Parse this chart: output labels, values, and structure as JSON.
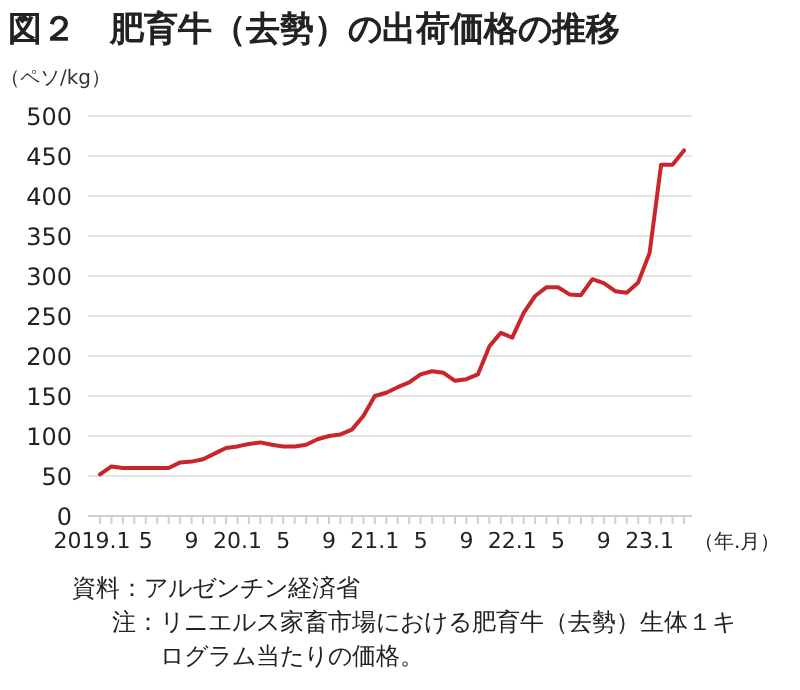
{
  "chart_data": {
    "type": "line",
    "title": "図２　肥育牛（去勢）の出荷価格の推移",
    "ylabel": "（ペソ/kg）",
    "xlabel": "（年.月）",
    "categories": [
      "2019.1",
      null,
      null,
      null,
      "5",
      null,
      null,
      null,
      "9",
      null,
      null,
      null,
      "20.1",
      null,
      null,
      null,
      "5",
      null,
      null,
      null,
      "9",
      null,
      null,
      null,
      "21.1",
      null,
      null,
      null,
      "5",
      null,
      null,
      null,
      "9",
      null,
      null,
      null,
      "22.1",
      null,
      null,
      null,
      "5",
      null,
      null,
      null,
      "9",
      null,
      null,
      null,
      "23.1",
      null,
      null,
      null
    ],
    "series": [
      {
        "color": "#c8262a",
        "values": [
          52,
          62,
          60,
          60,
          60,
          60,
          60,
          67,
          68,
          71,
          78,
          85,
          87,
          90,
          92,
          89,
          87,
          87,
          89,
          96,
          100,
          102,
          108,
          125,
          150,
          154,
          161,
          167,
          177,
          181,
          179,
          169,
          171,
          177,
          212,
          229,
          223,
          254,
          275,
          286,
          286,
          277,
          276,
          296,
          291,
          281,
          279,
          292,
          329,
          439,
          439,
          457
        ]
      }
    ],
    "ylim": [
      0,
      500
    ],
    "yticks": [
      0,
      50,
      100,
      150,
      200,
      250,
      300,
      350,
      400,
      450,
      500
    ],
    "grid": "y",
    "annotations": [
      "資料：アルゼンチン経済省",
      "注：リニエルス家畜市場における肥育牛（去勢）生体１キログラム当たりの価格。"
    ]
  }
}
